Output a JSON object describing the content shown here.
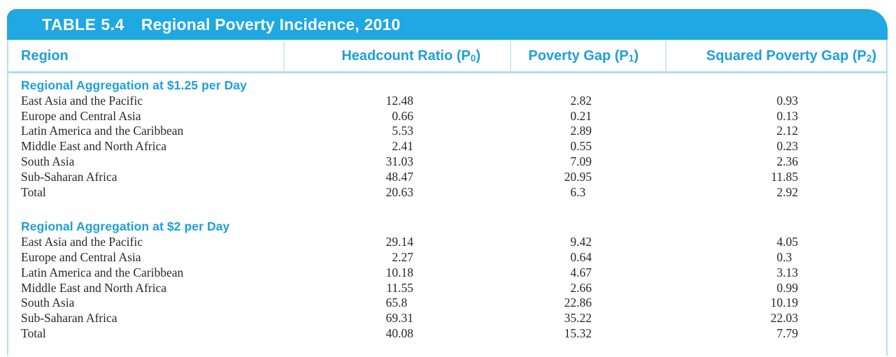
{
  "title_bar": {
    "tag": "TABLE 5.4",
    "title": "Regional Poverty Incidence, 2010"
  },
  "columns": {
    "region_label": "Region",
    "numeric": [
      {
        "pre": "Headcount Ratio (P",
        "sub": "0",
        "post": ")"
      },
      {
        "pre": "Poverty Gap (P",
        "sub": "1",
        "post": ")"
      },
      {
        "pre": "Squared Poverty Gap (P",
        "sub": "2",
        "post": ")"
      }
    ]
  },
  "sections": [
    {
      "title": "Regional Aggregation at $1.25 per Day",
      "rows": [
        {
          "region": "East Asia and the Pacific",
          "values": [
            "12.48",
            "2.82",
            "0.93"
          ]
        },
        {
          "region": "Europe and Central Asia",
          "values": [
            "0.66",
            "0.21",
            "0.13"
          ]
        },
        {
          "region": "Latin America and the Caribbean",
          "values": [
            "5.53",
            "2.89",
            "2.12"
          ]
        },
        {
          "region": "Middle East and North Africa",
          "values": [
            "2.41",
            "0.55",
            "0.23"
          ]
        },
        {
          "region": "South Asia",
          "values": [
            "31.03",
            "7.09",
            "2.36"
          ]
        },
        {
          "region": "Sub-Saharan Africa",
          "values": [
            "48.47",
            "20.95",
            "11.85"
          ]
        },
        {
          "region": "Total",
          "values": [
            "20.63",
            "6.3",
            "2.92"
          ]
        }
      ]
    },
    {
      "title": "Regional Aggregation at $2 per Day",
      "rows": [
        {
          "region": "East Asia and the Pacific",
          "values": [
            "29.14",
            "9.42",
            "4.05"
          ]
        },
        {
          "region": "Europe and Central Asia",
          "values": [
            "2.27",
            "0.64",
            "0.3"
          ]
        },
        {
          "region": "Latin America and the Caribbean",
          "values": [
            "10.18",
            "4.67",
            "3.13"
          ]
        },
        {
          "region": "Middle East and North Africa",
          "values": [
            "11.55",
            "2.66",
            "0.99"
          ]
        },
        {
          "region": "South Asia",
          "values": [
            "65.8",
            "22.86",
            "10.19"
          ]
        },
        {
          "region": "Sub-Saharan Africa",
          "values": [
            "69.31",
            "35.22",
            "22.03"
          ]
        },
        {
          "region": "Total",
          "values": [
            "40.08",
            "15.32",
            "7.79"
          ]
        }
      ]
    }
  ],
  "colors": {
    "title_bar_blue": "#1fa8e1",
    "heading_cyan": "#1d9fd8",
    "light_rule_blue": "#aedcf3",
    "body_text": "#2d2628"
  }
}
